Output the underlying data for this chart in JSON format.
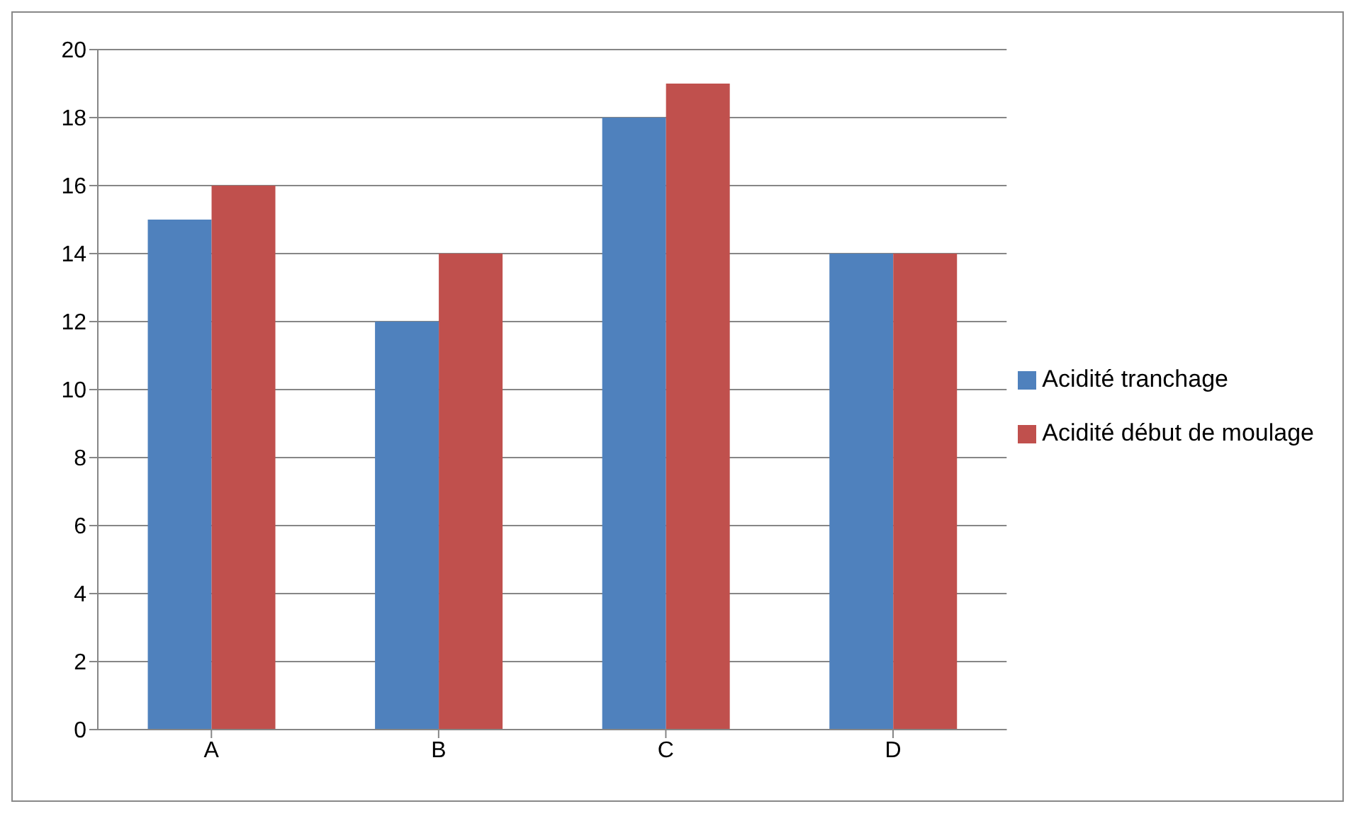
{
  "chart_data": {
    "type": "bar",
    "categories": [
      "A",
      "B",
      "C",
      "D"
    ],
    "series": [
      {
        "name": "Acidité tranchage",
        "color": "#4f81bd",
        "values": [
          15,
          12,
          18,
          14
        ]
      },
      {
        "name": "Acidité début de moulage",
        "color": "#c0504d",
        "values": [
          16,
          14,
          19,
          14
        ]
      }
    ],
    "ylim": [
      0,
      20
    ],
    "yticks": [
      0,
      2,
      4,
      6,
      8,
      10,
      12,
      14,
      16,
      18,
      20
    ],
    "grid": "y",
    "legend": "right"
  }
}
